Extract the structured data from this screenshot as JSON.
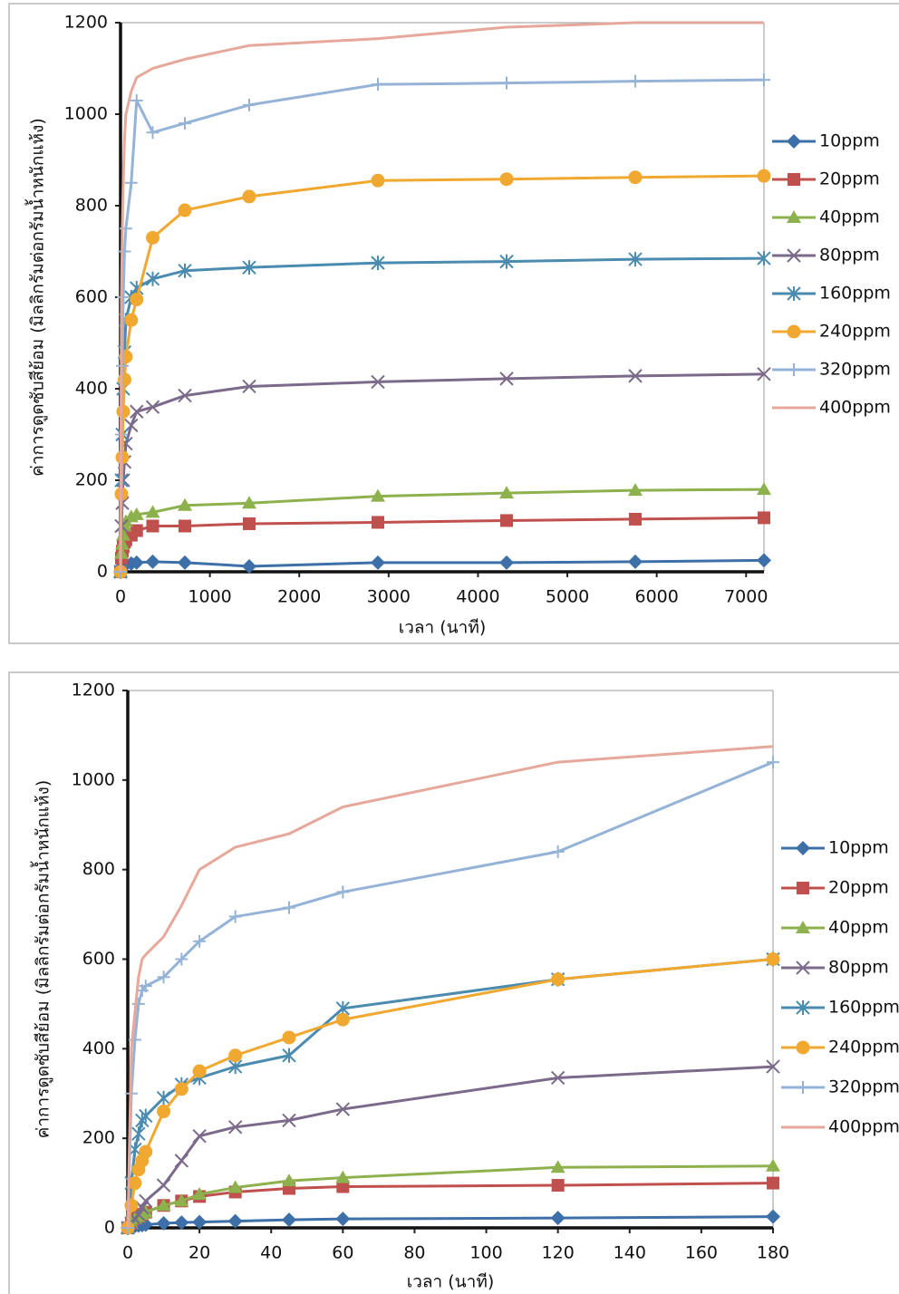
{
  "chart_data": [
    {
      "type": "line",
      "y_label": "ค่าการดูดซับสีย้อม (มิลลิกรัมต่อกรัมน้ำหนักแห้ง)",
      "x_label": "เวลา (นาที)",
      "x": [
        0,
        10,
        20,
        30,
        45,
        60,
        120,
        180,
        360,
        720,
        1440,
        2880,
        4320,
        5760,
        7200
      ],
      "xlim": [
        0,
        7200
      ],
      "xticks": [
        0,
        1000,
        2000,
        3000,
        4000,
        5000,
        6000,
        7000
      ],
      "ylim": [
        0,
        1200
      ],
      "yticks": [
        0,
        200,
        400,
        600,
        800,
        1000,
        1200
      ],
      "series": [
        {
          "name": "10ppm",
          "color": "#3d6fa8",
          "marker": "diamond",
          "values": [
            0,
            10,
            12,
            14,
            15,
            16,
            18,
            20,
            22,
            20,
            12,
            20,
            20,
            22,
            25
          ]
        },
        {
          "name": "20ppm",
          "color": "#c0504d",
          "marker": "square",
          "values": [
            0,
            30,
            45,
            55,
            65,
            70,
            80,
            90,
            100,
            100,
            105,
            108,
            112,
            115,
            118
          ]
        },
        {
          "name": "40ppm",
          "color": "#8db14d",
          "marker": "triangle",
          "values": [
            0,
            40,
            60,
            80,
            100,
            110,
            120,
            125,
            130,
            145,
            150,
            165,
            172,
            178,
            180
          ]
        },
        {
          "name": "80ppm",
          "color": "#7b6a8a",
          "marker": "x",
          "values": [
            0,
            100,
            150,
            200,
            240,
            280,
            320,
            350,
            360,
            385,
            405,
            415,
            422,
            428,
            432
          ]
        },
        {
          "name": "160ppm",
          "color": "#4b8bb0",
          "marker": "asterisk",
          "values": [
            0,
            200,
            300,
            400,
            480,
            550,
            600,
            620,
            640,
            658,
            665,
            675,
            678,
            683,
            685
          ]
        },
        {
          "name": "240ppm",
          "color": "#f0a830",
          "marker": "circle",
          "values": [
            0,
            170,
            250,
            350,
            420,
            470,
            550,
            595,
            730,
            790,
            820,
            855,
            858,
            862,
            865
          ]
        },
        {
          "name": "320ppm",
          "color": "#95b3d7",
          "marker": "plus",
          "values": [
            0,
            300,
            450,
            600,
            700,
            750,
            850,
            1030,
            960,
            980,
            1020,
            1065,
            1068,
            1072,
            1075
          ]
        },
        {
          "name": "400ppm",
          "color": "#e6a89a",
          "marker": "none",
          "values": [
            0,
            600,
            750,
            850,
            950,
            1000,
            1050,
            1080,
            1100,
            1120,
            1150,
            1165,
            1190,
            1200,
            1200
          ]
        }
      ]
    },
    {
      "type": "line",
      "y_label": "ค่าการดูดซับสีย้อม (มิลลิกรัมต่อกรัมน้ำหนักแห้ง)",
      "x_label": "เวลา (นาที)",
      "x": [
        0,
        1,
        2,
        3,
        4,
        5,
        10,
        15,
        20,
        30,
        45,
        60,
        120,
        180
      ],
      "xlim": [
        0,
        180
      ],
      "xticks": [
        0,
        20,
        40,
        60,
        80,
        100,
        120,
        140,
        160,
        180
      ],
      "ylim": [
        0,
        1200
      ],
      "yticks": [
        0,
        200,
        400,
        600,
        800,
        1000,
        1200
      ],
      "series": [
        {
          "name": "10ppm",
          "color": "#3d6fa8",
          "marker": "diamond",
          "values": [
            0,
            2,
            4,
            5,
            6,
            7,
            10,
            12,
            13,
            15,
            18,
            20,
            22,
            25
          ]
        },
        {
          "name": "20ppm",
          "color": "#c0504d",
          "marker": "square",
          "values": [
            0,
            10,
            20,
            25,
            30,
            35,
            50,
            60,
            70,
            80,
            88,
            92,
            95,
            100
          ]
        },
        {
          "name": "40ppm",
          "color": "#8db14d",
          "marker": "triangle",
          "values": [
            0,
            10,
            20,
            25,
            30,
            35,
            50,
            60,
            75,
            90,
            105,
            112,
            135,
            138
          ]
        },
        {
          "name": "80ppm",
          "color": "#7b6a8a",
          "marker": "x",
          "values": [
            0,
            10,
            20,
            30,
            45,
            60,
            95,
            150,
            205,
            225,
            240,
            265,
            335,
            360
          ]
        },
        {
          "name": "160ppm",
          "color": "#4b8bb0",
          "marker": "asterisk",
          "values": [
            0,
            100,
            175,
            210,
            240,
            250,
            290,
            320,
            335,
            360,
            385,
            490,
            555,
            600
          ]
        },
        {
          "name": "240ppm",
          "color": "#f0a830",
          "marker": "circle",
          "values": [
            0,
            50,
            100,
            130,
            150,
            170,
            260,
            310,
            350,
            385,
            425,
            465,
            555,
            600
          ]
        },
        {
          "name": "320ppm",
          "color": "#95b3d7",
          "marker": "plus",
          "values": [
            0,
            300,
            420,
            500,
            530,
            540,
            560,
            600,
            640,
            695,
            715,
            750,
            840,
            1040
          ]
        },
        {
          "name": "400ppm",
          "color": "#e6a89a",
          "marker": "none",
          "values": [
            0,
            400,
            480,
            560,
            600,
            610,
            650,
            720,
            800,
            850,
            880,
            940,
            1040,
            1075
          ]
        }
      ]
    }
  ]
}
